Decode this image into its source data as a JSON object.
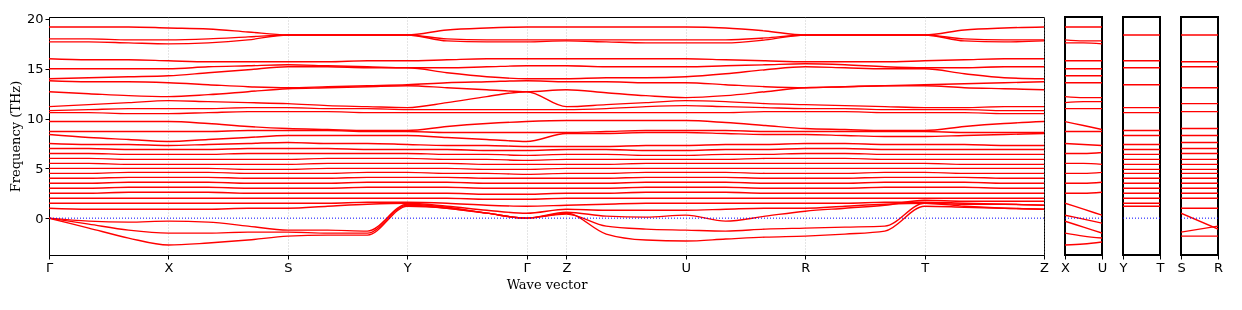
{
  "chart_data": [
    {
      "type": "line",
      "ylabel": "Frequency (THz)",
      "xlabel": "Wave vector",
      "ylim": [
        -3.7,
        20.2
      ],
      "yticks": [
        0,
        5,
        10,
        15,
        20
      ],
      "grid": "x",
      "legend": false,
      "ref_lines": [
        {
          "axis": "y",
          "value": 0,
          "color": "#0000ff",
          "line_style": "dotted"
        }
      ],
      "categories": [
        "Γ",
        null,
        null,
        "X",
        null,
        null,
        "S",
        null,
        null,
        "Y",
        null,
        null,
        "Γ",
        "Z",
        null,
        null,
        "U",
        null,
        null,
        "R",
        null,
        null,
        "T",
        null,
        null,
        "Z"
      ],
      "series": [
        {
          "color": "#ff0000",
          "values": [
            19.2,
            19.2,
            19.2,
            19.1,
            19.0,
            18.7,
            18.4,
            18.4,
            18.4,
            18.4,
            18.9,
            19.1,
            19.2,
            19.2,
            19.2,
            19.2,
            19.2,
            19.1,
            18.8,
            18.4,
            18.4,
            18.4,
            18.4,
            18.9,
            19.1,
            19.2
          ]
        },
        {
          "color": "#ff0000",
          "values": [
            18.0,
            18.0,
            17.9,
            17.9,
            18.0,
            18.2,
            18.4,
            18.4,
            18.4,
            18.4,
            18.0,
            17.9,
            17.9,
            17.9,
            17.9,
            17.9,
            17.9,
            17.9,
            18.1,
            18.4,
            18.4,
            18.4,
            18.4,
            18.0,
            17.9,
            17.9
          ]
        },
        {
          "color": "#ff0000",
          "values": [
            17.7,
            17.7,
            17.6,
            17.5,
            17.6,
            17.9,
            18.4,
            18.4,
            18.4,
            18.4,
            17.8,
            17.7,
            17.7,
            17.8,
            17.7,
            17.6,
            17.6,
            17.6,
            17.9,
            18.4,
            18.4,
            18.4,
            18.4,
            17.8,
            17.7,
            17.8
          ]
        },
        {
          "color": "#ff0000",
          "values": [
            16.0,
            15.9,
            15.9,
            15.8,
            15.7,
            15.7,
            15.7,
            15.7,
            15.8,
            15.8,
            15.9,
            16.0,
            16.0,
            16.0,
            16.0,
            16.0,
            16.0,
            15.9,
            15.8,
            15.7,
            15.7,
            15.7,
            15.8,
            15.9,
            16.0,
            16.0
          ]
        },
        {
          "color": "#ff0000",
          "values": [
            15.0,
            15.0,
            15.0,
            15.0,
            15.2,
            15.3,
            15.4,
            15.3,
            15.2,
            15.1,
            15.1,
            15.2,
            15.3,
            15.3,
            15.2,
            15.2,
            15.2,
            15.3,
            15.4,
            15.5,
            15.4,
            15.2,
            15.1,
            15.1,
            15.2,
            15.2
          ]
        },
        {
          "color": "#ff0000",
          "values": [
            14.0,
            14.1,
            14.2,
            14.3,
            14.6,
            14.9,
            15.2,
            15.2,
            15.1,
            15.1,
            14.6,
            14.2,
            14.0,
            14.0,
            14.1,
            14.1,
            14.2,
            14.5,
            14.9,
            15.2,
            15.1,
            15.0,
            15.0,
            14.5,
            14.1,
            14.0
          ]
        },
        {
          "color": "#ff0000",
          "values": [
            13.8,
            13.7,
            13.7,
            13.6,
            13.4,
            13.2,
            13.1,
            13.2,
            13.3,
            13.4,
            13.6,
            13.7,
            13.8,
            13.7,
            13.7,
            13.6,
            13.6,
            13.4,
            13.2,
            13.1,
            13.2,
            13.3,
            13.4,
            13.5,
            13.6,
            13.7
          ]
        },
        {
          "color": "#ff0000",
          "values": [
            12.7,
            12.5,
            12.3,
            12.2,
            12.4,
            12.7,
            13.0,
            13.1,
            13.2,
            13.3,
            13.1,
            12.9,
            12.7,
            12.9,
            12.6,
            12.3,
            12.1,
            12.3,
            12.7,
            13.1,
            13.2,
            13.3,
            13.3,
            13.1,
            13.0,
            12.9
          ]
        },
        {
          "color": "#ff0000",
          "values": [
            11.2,
            11.4,
            11.6,
            11.8,
            11.7,
            11.6,
            11.5,
            11.3,
            11.2,
            11.1,
            11.6,
            12.2,
            12.7,
            11.2,
            11.4,
            11.6,
            11.8,
            11.7,
            11.5,
            11.4,
            11.3,
            11.2,
            11.1,
            11.1,
            11.2,
            11.2
          ]
        },
        {
          "color": "#ff0000",
          "values": [
            10.8,
            10.9,
            11.0,
            11.0,
            11.0,
            11.1,
            11.1,
            11.0,
            11.0,
            10.9,
            10.9,
            10.9,
            10.9,
            10.9,
            11.0,
            11.2,
            11.3,
            11.2,
            11.1,
            11.0,
            11.0,
            10.9,
            10.9,
            10.9,
            10.8,
            10.8
          ]
        },
        {
          "color": "#ff0000",
          "values": [
            10.6,
            10.6,
            10.5,
            10.5,
            10.6,
            10.7,
            10.7,
            10.7,
            10.6,
            10.6,
            10.6,
            10.6,
            10.6,
            10.6,
            10.6,
            10.6,
            10.6,
            10.6,
            10.7,
            10.7,
            10.7,
            10.6,
            10.6,
            10.6,
            10.5,
            10.5
          ]
        },
        {
          "color": "#ff0000",
          "values": [
            9.7,
            9.7,
            9.7,
            9.7,
            9.5,
            9.2,
            9.0,
            8.9,
            8.8,
            8.8,
            9.2,
            9.5,
            9.7,
            9.8,
            9.8,
            9.8,
            9.8,
            9.6,
            9.3,
            9.0,
            8.9,
            8.8,
            8.8,
            9.2,
            9.5,
            9.7
          ]
        },
        {
          "color": "#ff0000",
          "values": [
            8.7,
            8.7,
            8.7,
            8.7,
            8.7,
            8.8,
            8.8,
            8.8,
            8.7,
            8.7,
            8.6,
            8.6,
            8.6,
            8.6,
            8.7,
            8.8,
            8.8,
            8.8,
            8.7,
            8.7,
            8.7,
            8.7,
            8.7,
            8.6,
            8.6,
            8.6
          ]
        },
        {
          "color": "#ff0000",
          "values": [
            8.4,
            8.1,
            7.9,
            7.7,
            7.9,
            8.1,
            8.3,
            8.3,
            8.3,
            8.3,
            8.1,
            7.9,
            7.7,
            8.5,
            8.5,
            8.6,
            8.6,
            8.5,
            8.4,
            8.4,
            8.3,
            8.2,
            8.2,
            8.3,
            8.4,
            8.5
          ]
        },
        {
          "color": "#ff0000",
          "values": [
            7.5,
            7.4,
            7.4,
            7.3,
            7.4,
            7.5,
            7.6,
            7.5,
            7.5,
            7.4,
            7.3,
            7.3,
            7.2,
            7.2,
            7.2,
            7.3,
            7.3,
            7.4,
            7.4,
            7.5,
            7.5,
            7.4,
            7.4,
            7.4,
            7.3,
            7.3
          ]
        },
        {
          "color": "#ff0000",
          "values": [
            7.0,
            7.0,
            6.9,
            6.9,
            6.9,
            7.0,
            7.0,
            7.0,
            6.9,
            6.9,
            6.9,
            6.8,
            6.8,
            6.9,
            6.9,
            6.8,
            6.8,
            6.9,
            6.9,
            7.0,
            7.0,
            6.9,
            6.9,
            6.9,
            6.9,
            6.9
          ]
        },
        {
          "color": "#ff0000",
          "values": [
            6.5,
            6.5,
            6.4,
            6.4,
            6.4,
            6.5,
            6.5,
            6.5,
            6.5,
            6.5,
            6.4,
            6.4,
            6.3,
            6.4,
            6.4,
            6.3,
            6.3,
            6.4,
            6.4,
            6.5,
            6.5,
            6.4,
            6.4,
            6.4,
            6.4,
            6.4
          ]
        },
        {
          "color": "#ff0000",
          "values": [
            6.0,
            6.0,
            5.9,
            5.9,
            5.9,
            5.9,
            5.9,
            6.0,
            6.0,
            6.0,
            5.9,
            5.9,
            5.8,
            5.9,
            5.9,
            5.9,
            5.9,
            5.9,
            6.0,
            6.0,
            6.0,
            5.9,
            5.9,
            5.9,
            5.9,
            5.9
          ]
        },
        {
          "color": "#ff0000",
          "values": [
            5.5,
            5.5,
            5.4,
            5.4,
            5.4,
            5.4,
            5.4,
            5.5,
            5.5,
            5.5,
            5.5,
            5.4,
            5.4,
            5.4,
            5.4,
            5.5,
            5.5,
            5.5,
            5.5,
            5.5,
            5.5,
            5.5,
            5.5,
            5.4,
            5.4,
            5.4
          ]
        },
        {
          "color": "#ff0000",
          "values": [
            5.0,
            5.0,
            5.0,
            5.0,
            5.0,
            4.9,
            4.9,
            5.0,
            5.0,
            5.0,
            5.0,
            4.9,
            4.9,
            5.0,
            5.0,
            5.0,
            5.0,
            5.0,
            5.0,
            5.0,
            5.0,
            5.0,
            5.0,
            5.0,
            5.0,
            5.0
          ]
        },
        {
          "color": "#ff0000",
          "values": [
            4.5,
            4.5,
            4.6,
            4.6,
            4.6,
            4.5,
            4.5,
            4.5,
            4.6,
            4.6,
            4.5,
            4.5,
            4.4,
            4.5,
            4.5,
            4.6,
            4.6,
            4.6,
            4.5,
            4.5,
            4.5,
            4.6,
            4.6,
            4.5,
            4.5,
            4.5
          ]
        },
        {
          "color": "#ff0000",
          "values": [
            4.0,
            4.0,
            4.1,
            4.1,
            4.1,
            4.0,
            4.0,
            4.0,
            4.1,
            4.1,
            4.1,
            4.0,
            4.0,
            4.0,
            4.0,
            4.1,
            4.1,
            4.1,
            4.0,
            4.0,
            4.0,
            4.1,
            4.1,
            4.1,
            4.0,
            4.0
          ]
        },
        {
          "color": "#ff0000",
          "values": [
            3.5,
            3.5,
            3.6,
            3.6,
            3.6,
            3.5,
            3.5,
            3.5,
            3.6,
            3.6,
            3.6,
            3.5,
            3.5,
            3.5,
            3.5,
            3.6,
            3.6,
            3.6,
            3.5,
            3.5,
            3.5,
            3.6,
            3.6,
            3.6,
            3.5,
            3.5
          ]
        },
        {
          "color": "#ff0000",
          "values": [
            3.0,
            3.0,
            3.1,
            3.1,
            3.1,
            3.0,
            3.0,
            3.0,
            3.1,
            3.1,
            3.1,
            3.0,
            3.0,
            3.0,
            3.0,
            3.1,
            3.1,
            3.1,
            3.0,
            3.0,
            3.0,
            3.1,
            3.1,
            3.1,
            3.0,
            3.0
          ]
        },
        {
          "color": "#ff0000",
          "values": [
            2.5,
            2.5,
            2.6,
            2.6,
            2.6,
            2.5,
            2.5,
            2.5,
            2.5,
            2.5,
            2.5,
            2.4,
            2.4,
            2.5,
            2.5,
            2.6,
            2.6,
            2.6,
            2.5,
            2.5,
            2.5,
            2.5,
            2.5,
            2.5,
            2.5,
            2.5
          ]
        },
        {
          "color": "#ff0000",
          "values": [
            2.0,
            2.0,
            2.0,
            2.0,
            2.0,
            2.0,
            2.0,
            2.0,
            2.0,
            2.0,
            2.0,
            1.9,
            1.9,
            2.0,
            2.0,
            2.0,
            2.0,
            2.0,
            2.0,
            2.0,
            2.0,
            2.0,
            2.0,
            2.0,
            2.0,
            2.0
          ]
        },
        {
          "color": "#ff0000",
          "values": [
            1.5,
            1.5,
            1.5,
            1.5,
            1.5,
            1.5,
            1.5,
            1.5,
            1.6,
            1.6,
            1.5,
            1.3,
            1.2,
            1.3,
            1.4,
            1.5,
            1.5,
            1.5,
            1.5,
            1.5,
            1.5,
            1.6,
            1.6,
            1.5,
            1.4,
            1.3
          ]
        },
        {
          "color": "#ff0000",
          "values": [
            1.0,
            0.9,
            0.9,
            0.9,
            0.9,
            1.0,
            1.0,
            1.2,
            1.4,
            1.5,
            1.2,
            0.8,
            0.5,
            0.9,
            0.8,
            0.8,
            0.8,
            0.9,
            1.0,
            1.0,
            1.2,
            1.4,
            1.5,
            1.2,
            1.0,
            0.9
          ]
        },
        {
          "color": "#ff0000",
          "values": [
            0,
            -1.0,
            -2.0,
            -2.7,
            -2.5,
            -2.2,
            -1.8,
            -1.7,
            -1.7,
            1.2,
            1.0,
            0.5,
            0,
            0.5,
            -1.6,
            -2.2,
            -2.3,
            -2.1,
            -1.9,
            -1.8,
            -1.6,
            -1.3,
            1.2,
            1.1,
            1.0,
            0.9
          ]
        },
        {
          "color": "#ff0000",
          "values": [
            0,
            -0.6,
            -1.2,
            -1.5,
            -1.5,
            -1.4,
            -1.4,
            -1.5,
            -1.5,
            1.3,
            1.0,
            0.5,
            0,
            0.4,
            -0.8,
            -1.1,
            -1.2,
            -1.3,
            -1.1,
            -1.0,
            -0.9,
            -0.8,
            1.5,
            1.4,
            1.4,
            1.3
          ]
        },
        {
          "color": "#ff0000",
          "values": [
            0,
            -0.3,
            -0.4,
            -0.3,
            -0.4,
            -0.8,
            -1.2,
            -1.2,
            -1.3,
            1.4,
            1.1,
            0.5,
            0,
            0.6,
            0.2,
            0.1,
            0.3,
            -0.3,
            0.2,
            0.7,
            1.0,
            1.3,
            1.8,
            1.7,
            1.7,
            1.7
          ]
        }
      ]
    },
    {
      "type": "line",
      "ylim": [
        -3.7,
        20.2
      ],
      "categories": [
        "X",
        null,
        "U"
      ],
      "tick_labels": "x",
      "legend": false,
      "ref_lines": [
        {
          "axis": "y",
          "value": 0,
          "color": "#0000ff",
          "line_style": "dotted"
        }
      ],
      "series": [
        {
          "color": "#ff0000",
          "values": [
            19.2,
            19.2,
            19.2
          ]
        },
        {
          "color": "#ff0000",
          "values": [
            17.9,
            17.8,
            17.8
          ]
        },
        {
          "color": "#ff0000",
          "values": [
            17.6,
            17.6,
            17.5
          ]
        },
        {
          "color": "#ff0000",
          "values": [
            15.8,
            15.8,
            15.8
          ]
        },
        {
          "color": "#ff0000",
          "values": [
            15.0,
            15.0,
            15.0
          ]
        },
        {
          "color": "#ff0000",
          "values": [
            14.3,
            14.3,
            14.3
          ]
        },
        {
          "color": "#ff0000",
          "values": [
            13.6,
            13.6,
            13.6
          ]
        },
        {
          "color": "#ff0000",
          "values": [
            12.2,
            12.1,
            12.1
          ]
        },
        {
          "color": "#ff0000",
          "values": [
            11.6,
            11.7,
            11.7
          ]
        },
        {
          "color": "#ff0000",
          "values": [
            11.0,
            11.0,
            11.0
          ]
        },
        {
          "color": "#ff0000",
          "values": [
            9.7,
            9.3,
            8.9
          ]
        },
        {
          "color": "#ff0000",
          "values": [
            8.7,
            8.7,
            8.7
          ]
        },
        {
          "color": "#ff0000",
          "values": [
            7.5,
            7.4,
            7.3
          ]
        },
        {
          "color": "#ff0000",
          "values": [
            6.5,
            6.5,
            6.6
          ]
        },
        {
          "color": "#ff0000",
          "values": [
            5.5,
            5.5,
            5.4
          ]
        },
        {
          "color": "#ff0000",
          "values": [
            4.5,
            4.5,
            4.6
          ]
        },
        {
          "color": "#ff0000",
          "values": [
            3.5,
            3.5,
            3.6
          ]
        },
        {
          "color": "#ff0000",
          "values": [
            2.5,
            2.5,
            2.6
          ]
        },
        {
          "color": "#ff0000",
          "values": [
            1.5,
            0.9,
            0.3
          ]
        },
        {
          "color": "#ff0000",
          "values": [
            0.3,
            -0.1,
            -0.5
          ]
        },
        {
          "color": "#ff0000",
          "values": [
            -0.3,
            -0.9,
            -1.5
          ]
        },
        {
          "color": "#ff0000",
          "values": [
            -1.5,
            -1.8,
            -2.0
          ]
        },
        {
          "color": "#ff0000",
          "values": [
            -2.7,
            -2.6,
            -2.4
          ]
        }
      ]
    },
    {
      "type": "line",
      "ylim": [
        -3.7,
        20.2
      ],
      "categories": [
        "Y",
        "T"
      ],
      "tick_labels": "x",
      "legend": false,
      "ref_lines": [
        {
          "axis": "y",
          "value": 0,
          "color": "#0000ff",
          "line_style": "dotted"
        }
      ],
      "series": [
        {
          "color": "#ff0000",
          "values": [
            18.4,
            18.4
          ]
        },
        {
          "color": "#ff0000",
          "values": [
            15.8,
            15.8
          ]
        },
        {
          "color": "#ff0000",
          "values": [
            15.1,
            15.1
          ]
        },
        {
          "color": "#ff0000",
          "values": [
            13.4,
            13.4
          ]
        },
        {
          "color": "#ff0000",
          "values": [
            11.1,
            11.1
          ]
        },
        {
          "color": "#ff0000",
          "values": [
            10.6,
            10.6
          ]
        },
        {
          "color": "#ff0000",
          "values": [
            8.8,
            8.8
          ]
        },
        {
          "color": "#ff0000",
          "values": [
            8.3,
            8.3
          ]
        },
        {
          "color": "#ff0000",
          "values": [
            7.4,
            7.4
          ]
        },
        {
          "color": "#ff0000",
          "values": [
            6.9,
            6.9
          ]
        },
        {
          "color": "#ff0000",
          "values": [
            6.4,
            6.4
          ]
        },
        {
          "color": "#ff0000",
          "values": [
            5.9,
            5.9
          ]
        },
        {
          "color": "#ff0000",
          "values": [
            5.4,
            5.4
          ]
        },
        {
          "color": "#ff0000",
          "values": [
            4.9,
            4.9
          ]
        },
        {
          "color": "#ff0000",
          "values": [
            4.5,
            4.5
          ]
        },
        {
          "color": "#ff0000",
          "values": [
            4.0,
            4.0
          ]
        },
        {
          "color": "#ff0000",
          "values": [
            3.5,
            3.5
          ]
        },
        {
          "color": "#ff0000",
          "values": [
            3.0,
            3.0
          ]
        },
        {
          "color": "#ff0000",
          "values": [
            2.5,
            2.5
          ]
        },
        {
          "color": "#ff0000",
          "values": [
            2.0,
            2.0
          ]
        },
        {
          "color": "#ff0000",
          "values": [
            1.5,
            1.5
          ]
        },
        {
          "color": "#ff0000",
          "values": [
            1.2,
            1.2
          ]
        }
      ]
    },
    {
      "type": "line",
      "ylim": [
        -3.7,
        20.2
      ],
      "categories": [
        "S",
        "R"
      ],
      "tick_labels": "x",
      "legend": false,
      "ref_lines": [
        {
          "axis": "y",
          "value": 0,
          "color": "#0000ff",
          "line_style": "dotted"
        }
      ],
      "series": [
        {
          "color": "#ff0000",
          "values": [
            18.4,
            18.4
          ]
        },
        {
          "color": "#ff0000",
          "values": [
            15.7,
            15.7
          ]
        },
        {
          "color": "#ff0000",
          "values": [
            15.2,
            15.2
          ]
        },
        {
          "color": "#ff0000",
          "values": [
            13.1,
            13.1
          ]
        },
        {
          "color": "#ff0000",
          "values": [
            11.5,
            11.5
          ]
        },
        {
          "color": "#ff0000",
          "values": [
            10.7,
            10.7
          ]
        },
        {
          "color": "#ff0000",
          "values": [
            9.0,
            9.0
          ]
        },
        {
          "color": "#ff0000",
          "values": [
            8.3,
            8.3
          ]
        },
        {
          "color": "#ff0000",
          "values": [
            7.6,
            7.6
          ]
        },
        {
          "color": "#ff0000",
          "values": [
            7.0,
            7.0
          ]
        },
        {
          "color": "#ff0000",
          "values": [
            6.5,
            6.5
          ]
        },
        {
          "color": "#ff0000",
          "values": [
            5.9,
            5.9
          ]
        },
        {
          "color": "#ff0000",
          "values": [
            5.4,
            5.4
          ]
        },
        {
          "color": "#ff0000",
          "values": [
            4.9,
            4.9
          ]
        },
        {
          "color": "#ff0000",
          "values": [
            4.5,
            4.5
          ]
        },
        {
          "color": "#ff0000",
          "values": [
            4.0,
            4.0
          ]
        },
        {
          "color": "#ff0000",
          "values": [
            3.5,
            3.5
          ]
        },
        {
          "color": "#ff0000",
          "values": [
            3.0,
            3.0
          ]
        },
        {
          "color": "#ff0000",
          "values": [
            2.5,
            2.5
          ]
        },
        {
          "color": "#ff0000",
          "values": [
            2.0,
            2.0
          ]
        },
        {
          "color": "#ff0000",
          "values": [
            1.0,
            1.0
          ]
        },
        {
          "color": "#ff0000",
          "values": [
            0.5,
            -1.1
          ]
        },
        {
          "color": "#ff0000",
          "values": [
            -1.4,
            -0.8
          ]
        },
        {
          "color": "#ff0000",
          "values": [
            -1.8,
            -1.8
          ]
        }
      ]
    }
  ]
}
